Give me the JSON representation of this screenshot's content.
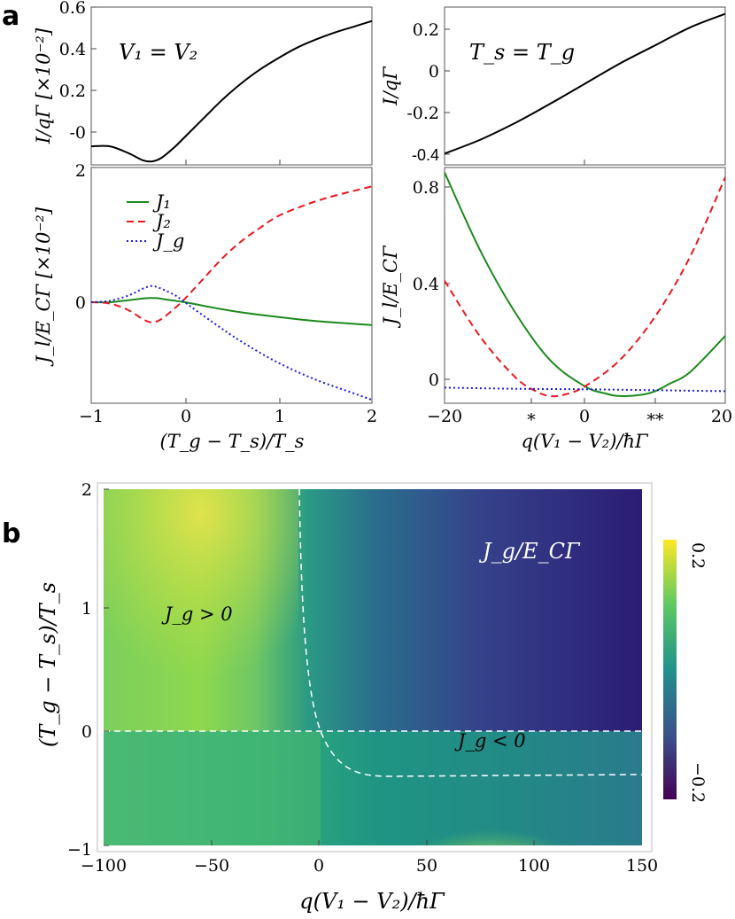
{
  "panel_labels": {
    "a": "a",
    "b": "b"
  },
  "chart_data": [
    {
      "id": "a1",
      "type": "line",
      "xlabel": "(T_g − T_s)/T_s",
      "ylabel": "I/qΓ [×10⁻²]",
      "annotation": "V₁ = V₂",
      "xlim": [
        -1,
        2
      ],
      "ylim": [
        -0.08,
        0.6
      ],
      "yticks": [
        "-0",
        "0.2",
        "0.4",
        "0.6"
      ],
      "series": [
        {
          "name": "I",
          "color": "#000000",
          "x": [
            -1,
            -0.8,
            -0.6,
            -0.45,
            -0.35,
            -0.25,
            -0.1,
            0,
            0.2,
            0.4,
            0.6,
            0.8,
            1.0,
            1.2,
            1.4,
            1.6,
            1.8,
            2.0
          ],
          "y": [
            0,
            0,
            -0.03,
            -0.06,
            -0.065,
            -0.05,
            0.0,
            0.04,
            0.12,
            0.2,
            0.27,
            0.33,
            0.38,
            0.425,
            0.46,
            0.49,
            0.515,
            0.54
          ]
        }
      ]
    },
    {
      "id": "a2",
      "type": "line",
      "xlabel": "q(V₁ − V₂)/ħΓ",
      "ylabel": "I/qΓ",
      "annotation": "T_s = T_g",
      "xlim": [
        -20,
        20
      ],
      "ylim": [
        -0.4,
        0.3
      ],
      "yticks": [
        "-0.4",
        "-0.2",
        "0",
        "0.2"
      ],
      "series": [
        {
          "name": "I",
          "color": "#000000",
          "x": [
            -20,
            -15,
            -10,
            -5,
            0,
            5,
            10,
            15,
            20
          ],
          "y": [
            -0.35,
            -0.29,
            -0.215,
            -0.13,
            -0.04,
            0.05,
            0.13,
            0.21,
            0.27
          ]
        }
      ]
    },
    {
      "id": "a3",
      "type": "line",
      "xlabel": "(T_g − T_s)/T_s",
      "ylabel": "J_l/E_CΓ [×10⁻²]",
      "xlim": [
        -1,
        2
      ],
      "ylim": [
        -1.5,
        2
      ],
      "xticks": [
        "−1",
        "0",
        "1",
        "2"
      ],
      "yticks": [
        "0",
        "2"
      ],
      "legend": [
        "J₁",
        "J₂",
        "J_g"
      ],
      "series": [
        {
          "name": "J1",
          "color": "#1b8a1b",
          "dash": "",
          "x": [
            -1,
            -0.8,
            -0.6,
            -0.4,
            -0.3,
            -0.2,
            0,
            0.3,
            0.6,
            1.0,
            1.4,
            2.0
          ],
          "y": [
            0,
            0.0,
            0.03,
            0.06,
            0.06,
            0.04,
            0.0,
            -0.08,
            -0.15,
            -0.22,
            -0.28,
            -0.34
          ]
        },
        {
          "name": "J2",
          "color": "#e8171f",
          "dash": "8,5",
          "x": [
            -1,
            -0.8,
            -0.6,
            -0.45,
            -0.35,
            -0.25,
            -0.1,
            0,
            0.2,
            0.4,
            0.6,
            0.8,
            1.0,
            1.3,
            1.6,
            2.0
          ],
          "y": [
            0,
            -0.02,
            -0.12,
            -0.25,
            -0.3,
            -0.25,
            -0.08,
            0.05,
            0.35,
            0.65,
            0.9,
            1.1,
            1.28,
            1.45,
            1.58,
            1.72
          ]
        },
        {
          "name": "Jg",
          "color": "#1a1ae6",
          "dash": "2,3",
          "x": [
            -1,
            -0.8,
            -0.6,
            -0.45,
            -0.35,
            -0.25,
            -0.1,
            0,
            0.3,
            0.6,
            1.0,
            1.4,
            1.8,
            2.0
          ],
          "y": [
            0,
            0.02,
            0.1,
            0.2,
            0.24,
            0.2,
            0.1,
            0.0,
            -0.3,
            -0.58,
            -0.9,
            -1.15,
            -1.35,
            -1.45
          ]
        }
      ]
    },
    {
      "id": "a4",
      "type": "line",
      "xlabel": "q(V₁ − V₂)/ħΓ",
      "ylabel": "J_l/E_CΓ",
      "xlim": [
        -20,
        20
      ],
      "ylim": [
        -0.06,
        0.92
      ],
      "xticks": [
        "−20",
        "*",
        "0",
        "**",
        "20"
      ],
      "yticks": [
        "0",
        "0.4",
        "0.8"
      ],
      "series": [
        {
          "name": "J1",
          "color": "#1b8a1b",
          "dash": "",
          "x": [
            -20,
            -15,
            -10,
            -5,
            0,
            3,
            5,
            8,
            10,
            12,
            15,
            20
          ],
          "y": [
            0.9,
            0.58,
            0.32,
            0.12,
            0.01,
            -0.02,
            -0.03,
            -0.025,
            -0.01,
            0.02,
            0.07,
            0.22
          ]
        },
        {
          "name": "J2",
          "color": "#e8171f",
          "dash": "8,5",
          "x": [
            -20,
            -15,
            -10,
            -7,
            -5,
            -3,
            0,
            5,
            10,
            15,
            20
          ],
          "y": [
            0.45,
            0.22,
            0.05,
            -0.01,
            -0.03,
            -0.025,
            0.01,
            0.12,
            0.3,
            0.55,
            0.88
          ]
        },
        {
          "name": "Jg",
          "color": "#1a1ae6",
          "dash": "2,3",
          "x": [
            -20,
            -10,
            0,
            10,
            20
          ],
          "y": [
            0.005,
            0.0,
            -0.002,
            -0.006,
            -0.01
          ]
        }
      ]
    },
    {
      "id": "b",
      "type": "heatmap",
      "title": "J_g/E_CΓ",
      "xlabel": "q(V₁ − V₂)/ħΓ",
      "ylabel": "(T_g − T_s)/T_s",
      "xlim": [
        -100,
        150
      ],
      "ylim": [
        -1,
        2
      ],
      "xticks": [
        "−100",
        "−50",
        "0",
        "50",
        "100",
        "150"
      ],
      "yticks": [
        "−1",
        "0",
        "1",
        "2"
      ],
      "colorbar": {
        "min": -0.2,
        "max": 0.2,
        "labels": [
          "0.2",
          "−0.2"
        ]
      },
      "annotations": [
        "J_g > 0",
        "J_g < 0"
      ]
    }
  ]
}
